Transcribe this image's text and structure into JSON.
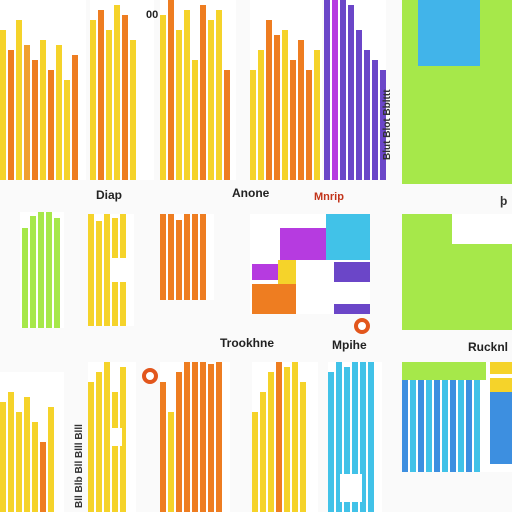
{
  "labels": {
    "top_glyph": "00",
    "row1": [
      "Diap",
      "Anone",
      "Mnrip"
    ],
    "row2": [
      "Trookhne",
      "Mpihe",
      "Rucknl"
    ],
    "right_edge_1": "þ",
    "vertical_right": "Blut Blot Bblttt",
    "vertical_left": "Bll Blb Bll Blll Blll"
  },
  "colors": {
    "orange": "#ee7d21",
    "yellow": "#f5d32a",
    "lime": "#a6e84a",
    "purple": "#6b46c8",
    "magenta": "#b63be0",
    "sky": "#41c2e8",
    "blue": "#3d8fe0",
    "dot_ring": "#e2561c",
    "label_accent": "#c2341a"
  },
  "icons": [
    "record-dot-icon",
    "record-dot-icon",
    "record-dot-icon"
  ]
}
